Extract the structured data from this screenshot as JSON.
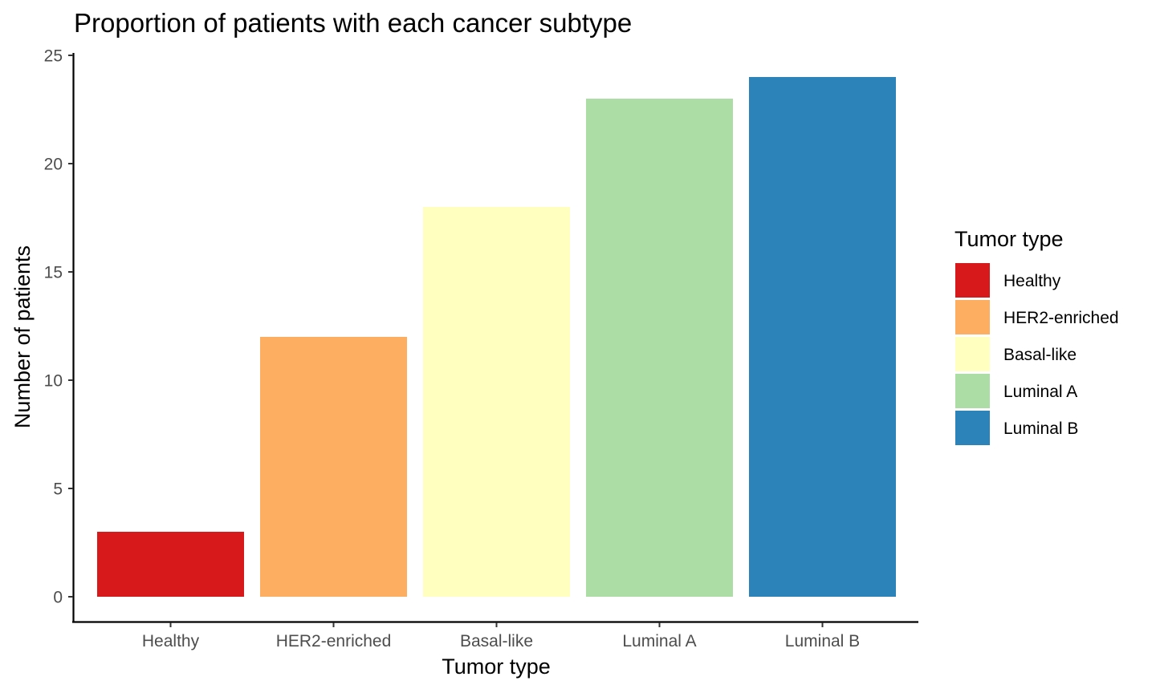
{
  "chart_data": {
    "type": "bar",
    "title": "Proportion of patients with each cancer subtype",
    "xlabel": "Tumor type",
    "ylabel": "Number of patients",
    "categories": [
      "Healthy",
      "HER2-enriched",
      "Basal-like",
      "Luminal A",
      "Luminal B"
    ],
    "values": [
      3,
      12,
      18,
      23,
      24
    ],
    "colors": [
      "#d7191c",
      "#fdae61",
      "#ffffbf",
      "#abdda4",
      "#2b83ba"
    ],
    "ylim": [
      0,
      25
    ],
    "yticks": [
      0,
      5,
      10,
      15,
      20,
      25
    ],
    "grid": false,
    "legend": {
      "title": "Tumor type",
      "position": "right",
      "entries": [
        "Healthy",
        "HER2-enriched",
        "Basal-like",
        "Luminal A",
        "Luminal B"
      ]
    }
  }
}
